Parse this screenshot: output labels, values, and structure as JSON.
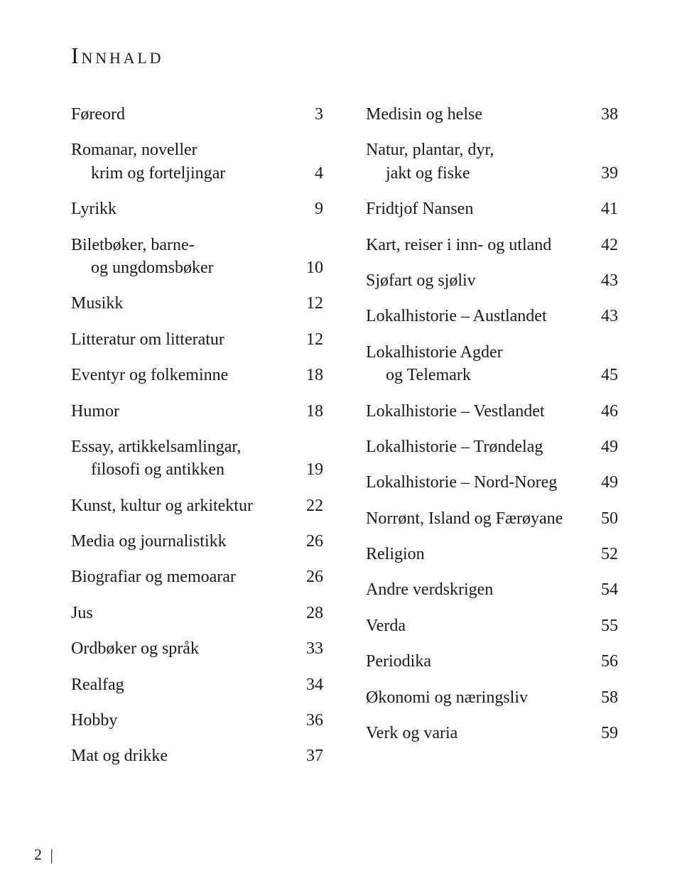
{
  "heading": "Innhald",
  "leftColumn": [
    {
      "lines": [
        "Føreord"
      ],
      "page": "3"
    },
    {
      "lines": [
        "Romanar, noveller",
        "krim og forteljingar"
      ],
      "page": "4"
    },
    {
      "lines": [
        "Lyrikk"
      ],
      "page": "9"
    },
    {
      "lines": [
        "Biletbøker, barne-",
        "og ungdomsbøker"
      ],
      "page": "10"
    },
    {
      "lines": [
        "Musikk"
      ],
      "page": "12"
    },
    {
      "lines": [
        "Litteratur om litteratur"
      ],
      "page": "12"
    },
    {
      "lines": [
        "Eventyr og folkeminne"
      ],
      "page": "18"
    },
    {
      "lines": [
        "Humor"
      ],
      "page": "18"
    },
    {
      "lines": [
        "Essay, artikkelsamlingar,",
        "filosofi og antikken"
      ],
      "page": "19"
    },
    {
      "lines": [
        "Kunst, kultur og arkitektur"
      ],
      "page": "22"
    },
    {
      "lines": [
        "Media og journalistikk"
      ],
      "page": "26"
    },
    {
      "lines": [
        "Biografiar og memoarar"
      ],
      "page": "26"
    },
    {
      "lines": [
        "Jus"
      ],
      "page": "28"
    },
    {
      "lines": [
        "Ordbøker og språk"
      ],
      "page": "33"
    },
    {
      "lines": [
        "Realfag"
      ],
      "page": "34"
    },
    {
      "lines": [
        "Hobby"
      ],
      "page": "36"
    },
    {
      "lines": [
        "Mat og drikke"
      ],
      "page": "37"
    }
  ],
  "rightColumn": [
    {
      "lines": [
        "Medisin og helse"
      ],
      "page": "38"
    },
    {
      "lines": [
        "Natur, plantar, dyr,",
        "jakt og fiske"
      ],
      "page": "39"
    },
    {
      "lines": [
        "Fridtjof Nansen"
      ],
      "page": "41"
    },
    {
      "lines": [
        "Kart, reiser i inn- og utland"
      ],
      "page": "42"
    },
    {
      "lines": [
        "Sjøfart og sjøliv"
      ],
      "page": "43"
    },
    {
      "lines": [
        "Lokalhistorie – Austlandet"
      ],
      "page": "43"
    },
    {
      "lines": [
        "Lokalhistorie Agder",
        "og Telemark"
      ],
      "page": "45"
    },
    {
      "lines": [
        "Lokalhistorie – Vestlandet"
      ],
      "page": "46"
    },
    {
      "lines": [
        "Lokalhistorie – Trøndelag"
      ],
      "page": "49"
    },
    {
      "lines": [
        "Lokalhistorie – Nord-Noreg"
      ],
      "page": "49"
    },
    {
      "lines": [
        "Norrønt, Island og Færøyane"
      ],
      "page": "50"
    },
    {
      "lines": [
        "Religion"
      ],
      "page": "52"
    },
    {
      "lines": [
        "Andre verdskrigen"
      ],
      "page": "54"
    },
    {
      "lines": [
        "Verda"
      ],
      "page": "55"
    },
    {
      "lines": [
        "Periodika"
      ],
      "page": "56"
    },
    {
      "lines": [
        "Økonomi og næringsliv"
      ],
      "page": "58"
    },
    {
      "lines": [
        "Verk og varia"
      ],
      "page": "59"
    }
  ],
  "footer": {
    "pageNumber": "2",
    "separator": "|"
  },
  "style": {
    "background": "#ffffff",
    "textColor": "#1a1a1a",
    "headingFontSize": 32,
    "bodyFontSize": 24,
    "entrySpacing": 18,
    "subIndent": 28,
    "pageWidth": 960,
    "pageHeight": 1257
  }
}
